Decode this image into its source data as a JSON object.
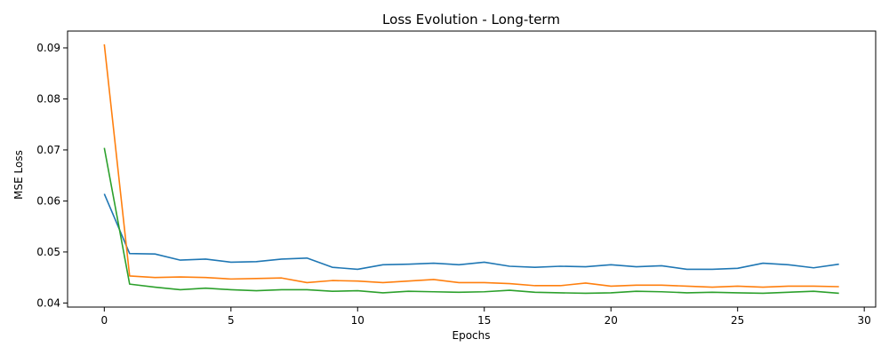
{
  "chart_data": {
    "type": "line",
    "title": "Loss Evolution - Long-term",
    "xlabel": "Epochs",
    "ylabel": "MSE Loss",
    "xlim": [
      -1.45,
      30.45
    ],
    "ylim": [
      0.0392,
      0.0933
    ],
    "xticks": [
      0,
      5,
      10,
      15,
      20,
      25,
      30
    ],
    "yticks": [
      0.04,
      0.05,
      0.06,
      0.07,
      0.08,
      0.09
    ],
    "grid": false,
    "legend": "none",
    "x": [
      0,
      1,
      2,
      3,
      4,
      5,
      6,
      7,
      8,
      9,
      10,
      11,
      12,
      13,
      14,
      15,
      16,
      17,
      18,
      19,
      20,
      21,
      22,
      23,
      24,
      25,
      26,
      27,
      28,
      29
    ],
    "series": [
      {
        "color": "#1f77b4",
        "values": [
          0.0614,
          0.0497,
          0.0496,
          0.0484,
          0.0486,
          0.048,
          0.0481,
          0.0486,
          0.0488,
          0.047,
          0.0466,
          0.0475,
          0.0476,
          0.0478,
          0.0475,
          0.048,
          0.0472,
          0.047,
          0.0472,
          0.0471,
          0.0475,
          0.0471,
          0.0473,
          0.0466,
          0.0466,
          0.0468,
          0.0478,
          0.0475,
          0.0469,
          0.0476
        ]
      },
      {
        "color": "#ff7f0e",
        "values": [
          0.0907,
          0.0453,
          0.045,
          0.0451,
          0.045,
          0.0447,
          0.0448,
          0.0449,
          0.044,
          0.0444,
          0.0443,
          0.044,
          0.0443,
          0.0446,
          0.044,
          0.044,
          0.0438,
          0.0434,
          0.0434,
          0.0439,
          0.0433,
          0.0435,
          0.0435,
          0.0433,
          0.0431,
          0.0433,
          0.0431,
          0.0433,
          0.0433,
          0.0432
        ]
      },
      {
        "color": "#2ca02c",
        "values": [
          0.0704,
          0.0437,
          0.0431,
          0.0426,
          0.0429,
          0.0426,
          0.0424,
          0.0426,
          0.0426,
          0.0423,
          0.0424,
          0.042,
          0.0423,
          0.0422,
          0.0421,
          0.0422,
          0.0425,
          0.0421,
          0.042,
          0.0419,
          0.042,
          0.0423,
          0.0422,
          0.042,
          0.0421,
          0.042,
          0.0419,
          0.0421,
          0.0423,
          0.0419
        ]
      }
    ]
  }
}
